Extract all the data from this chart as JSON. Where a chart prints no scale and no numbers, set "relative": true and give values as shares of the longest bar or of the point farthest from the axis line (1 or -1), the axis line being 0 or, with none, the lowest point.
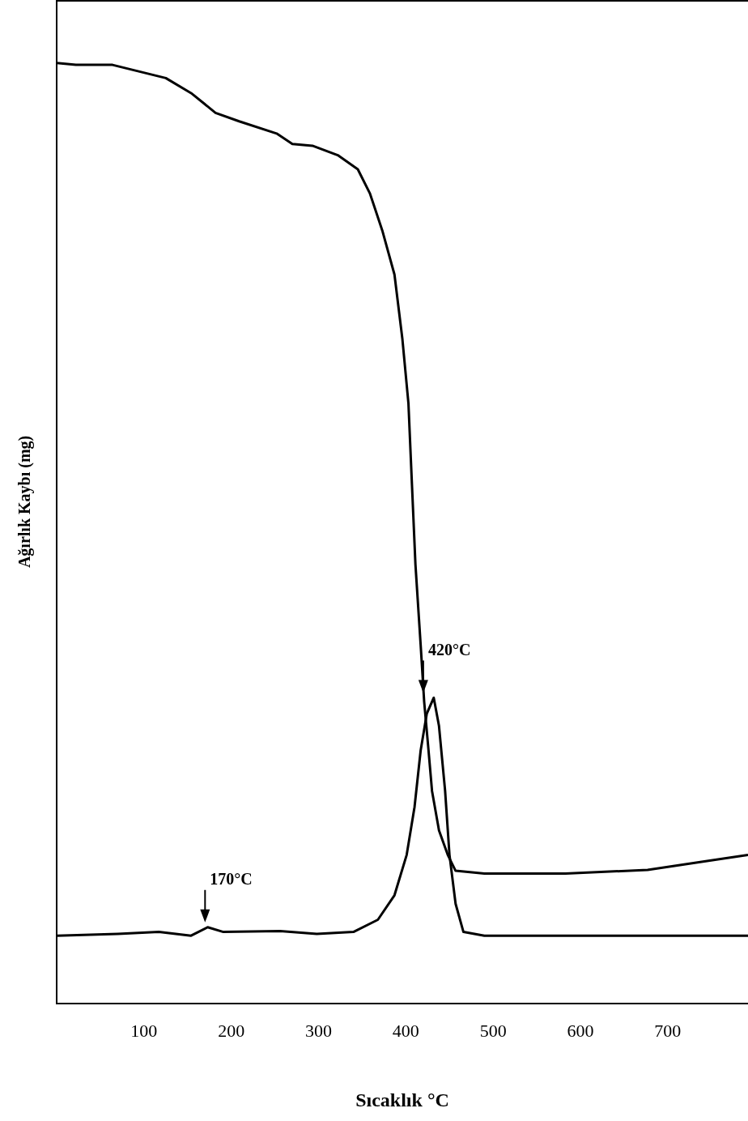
{
  "chart_data": {
    "type": "line",
    "relative": true,
    "xlabel": "Sıcaklık °C",
    "ylabel": "Ağırlık Kaybı (mg)",
    "xlim": [
      0,
      792
    ],
    "xticks": [
      100,
      200,
      300,
      400,
      500,
      600,
      700
    ],
    "grid": false,
    "legend": false,
    "marker": "none",
    "line_style": "solid",
    "series": [
      {
        "color": "#000000",
        "x": [
          0,
          22,
          64,
          125,
          154,
          182,
          209,
          252,
          270,
          293,
          322,
          345,
          359,
          373,
          387,
          396,
          403,
          407,
          411,
          417,
          421,
          426,
          430,
          438,
          448,
          457,
          490,
          583,
          677,
          742,
          792
        ],
        "values": [
          1.0,
          0.998,
          0.998,
          0.984,
          0.968,
          0.947,
          0.938,
          0.925,
          0.914,
          0.912,
          0.902,
          0.887,
          0.861,
          0.822,
          0.775,
          0.707,
          0.638,
          0.552,
          0.467,
          0.381,
          0.321,
          0.269,
          0.226,
          0.184,
          0.158,
          0.141,
          0.138,
          0.138,
          0.142,
          0.151,
          0.158
        ]
      },
      {
        "color": "#000000",
        "x": [
          0,
          70,
          117,
          154,
          173,
          191,
          256,
          298,
          340,
          368,
          387,
          401,
          410,
          417,
          424,
          432,
          438,
          445,
          450,
          457,
          466,
          490,
          583,
          677,
          792
        ],
        "values": [
          0.072,
          0.074,
          0.076,
          0.072,
          0.081,
          0.076,
          0.077,
          0.074,
          0.076,
          0.089,
          0.115,
          0.158,
          0.209,
          0.269,
          0.308,
          0.325,
          0.295,
          0.226,
          0.158,
          0.106,
          0.076,
          0.072,
          0.072,
          0.072,
          0.072
        ]
      }
    ],
    "annotations": [
      {
        "text": "170°C",
        "x": 170,
        "y": 0.081
      },
      {
        "text": "420°C",
        "x": 420,
        "y": 0.325
      }
    ]
  }
}
